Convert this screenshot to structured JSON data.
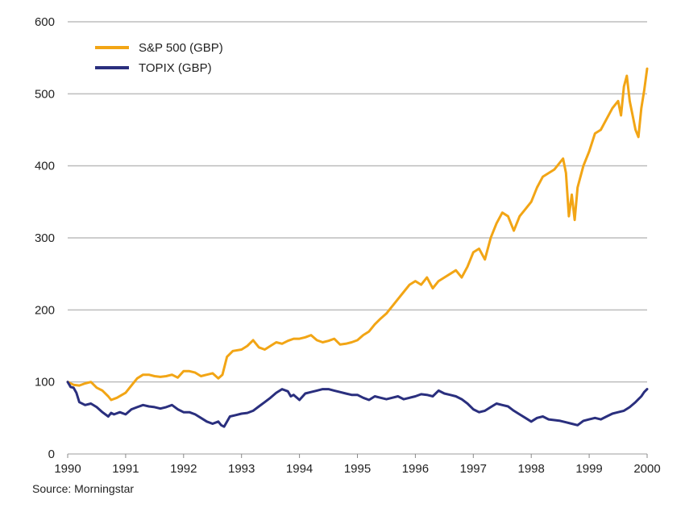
{
  "chart_data": {
    "type": "line",
    "title": "",
    "xlabel": "",
    "ylabel": "",
    "xlim": [
      1990,
      2000
    ],
    "ylim": [
      0,
      600
    ],
    "x_ticks": [
      1990,
      1991,
      1992,
      1993,
      1994,
      1995,
      1996,
      1997,
      1998,
      1999,
      2000
    ],
    "x_tick_labels": [
      "1990",
      "1991",
      "1992",
      "1993",
      "1994",
      "1995",
      "1996",
      "1997",
      "1998",
      "1999",
      "2000"
    ],
    "y_ticks": [
      0,
      100,
      200,
      300,
      400,
      500,
      600
    ],
    "y_tick_labels": [
      "0",
      "100",
      "200",
      "300",
      "400",
      "500",
      "600"
    ],
    "grid": "horizontal",
    "legend_position": "top-left",
    "series": [
      {
        "name": "S&P 500 (GBP)",
        "color": "#F2A515",
        "x": [
          1990.0,
          1990.1,
          1990.2,
          1990.3,
          1990.4,
          1990.5,
          1990.6,
          1990.7,
          1990.75,
          1990.85,
          1991.0,
          1991.1,
          1991.2,
          1991.3,
          1991.4,
          1991.5,
          1991.6,
          1991.7,
          1991.8,
          1991.9,
          1992.0,
          1992.1,
          1992.2,
          1992.3,
          1992.4,
          1992.5,
          1992.6,
          1992.67,
          1992.75,
          1992.85,
          1993.0,
          1993.1,
          1993.2,
          1993.3,
          1993.4,
          1993.5,
          1993.6,
          1993.7,
          1993.8,
          1993.9,
          1994.0,
          1994.1,
          1994.2,
          1994.3,
          1994.4,
          1994.5,
          1994.6,
          1994.7,
          1994.8,
          1994.9,
          1995.0,
          1995.1,
          1995.2,
          1995.3,
          1995.4,
          1995.5,
          1995.6,
          1995.7,
          1995.8,
          1995.9,
          1996.0,
          1996.1,
          1996.2,
          1996.3,
          1996.4,
          1996.5,
          1996.6,
          1996.7,
          1996.8,
          1996.9,
          1997.0,
          1997.1,
          1997.2,
          1997.3,
          1997.4,
          1997.5,
          1997.6,
          1997.7,
          1997.8,
          1997.9,
          1998.0,
          1998.1,
          1998.2,
          1998.3,
          1998.4,
          1998.5,
          1998.55,
          1998.6,
          1998.65,
          1998.7,
          1998.75,
          1998.8,
          1998.9,
          1999.0,
          1999.1,
          1999.2,
          1999.3,
          1999.4,
          1999.5,
          1999.55,
          1999.6,
          1999.65,
          1999.7,
          1999.75,
          1999.8,
          1999.85,
          1999.9,
          1999.95,
          2000.0
        ],
        "y": [
          100,
          96,
          95,
          98,
          100,
          92,
          88,
          80,
          75,
          78,
          85,
          95,
          105,
          110,
          110,
          108,
          107,
          108,
          110,
          106,
          115,
          115,
          113,
          108,
          110,
          112,
          105,
          110,
          135,
          143,
          145,
          150,
          158,
          148,
          145,
          150,
          155,
          153,
          157,
          160,
          160,
          162,
          165,
          158,
          155,
          157,
          160,
          152,
          153,
          155,
          158,
          165,
          170,
          180,
          188,
          195,
          205,
          215,
          225,
          235,
          240,
          235,
          245,
          230,
          240,
          245,
          250,
          255,
          245,
          260,
          280,
          285,
          270,
          300,
          320,
          335,
          330,
          310,
          330,
          340,
          350,
          370,
          385,
          390,
          395,
          405,
          410,
          390,
          330,
          360,
          325,
          370,
          400,
          420,
          445,
          450,
          465,
          480,
          490,
          470,
          510,
          525,
          490,
          470,
          450,
          440,
          480,
          505,
          535
        ]
      },
      {
        "name": "TOPIX (GBP)",
        "color": "#2A2F7E",
        "x": [
          1990.0,
          1990.05,
          1990.1,
          1990.15,
          1990.2,
          1990.3,
          1990.4,
          1990.5,
          1990.6,
          1990.7,
          1990.75,
          1990.8,
          1990.9,
          1991.0,
          1991.1,
          1991.2,
          1991.3,
          1991.4,
          1991.5,
          1991.6,
          1991.7,
          1991.8,
          1991.9,
          1992.0,
          1992.1,
          1992.2,
          1992.3,
          1992.4,
          1992.5,
          1992.6,
          1992.65,
          1992.7,
          1992.8,
          1992.9,
          1993.0,
          1993.1,
          1993.2,
          1993.3,
          1993.4,
          1993.5,
          1993.6,
          1993.7,
          1993.8,
          1993.85,
          1993.9,
          1994.0,
          1994.1,
          1994.2,
          1994.3,
          1994.4,
          1994.5,
          1994.6,
          1994.7,
          1994.8,
          1994.9,
          1995.0,
          1995.1,
          1995.2,
          1995.3,
          1995.4,
          1995.5,
          1995.6,
          1995.7,
          1995.8,
          1995.9,
          1996.0,
          1996.1,
          1996.2,
          1996.3,
          1996.4,
          1996.5,
          1996.6,
          1996.7,
          1996.8,
          1996.9,
          1997.0,
          1997.1,
          1997.2,
          1997.3,
          1997.4,
          1997.5,
          1997.6,
          1997.7,
          1997.8,
          1997.9,
          1998.0,
          1998.1,
          1998.2,
          1998.3,
          1998.4,
          1998.5,
          1998.6,
          1998.7,
          1998.8,
          1998.9,
          1999.0,
          1999.1,
          1999.2,
          1999.3,
          1999.4,
          1999.5,
          1999.6,
          1999.7,
          1999.8,
          1999.85,
          1999.9,
          1999.95,
          2000.0
        ],
        "y": [
          100,
          93,
          92,
          85,
          72,
          68,
          70,
          65,
          58,
          52,
          57,
          55,
          58,
          55,
          62,
          65,
          68,
          66,
          65,
          63,
          65,
          68,
          62,
          58,
          58,
          55,
          50,
          45,
          42,
          45,
          40,
          38,
          52,
          54,
          56,
          57,
          60,
          66,
          72,
          78,
          85,
          90,
          87,
          80,
          82,
          75,
          84,
          86,
          88,
          90,
          90,
          88,
          86,
          84,
          82,
          82,
          78,
          75,
          80,
          78,
          76,
          78,
          80,
          76,
          78,
          80,
          83,
          82,
          80,
          88,
          84,
          82,
          80,
          76,
          70,
          62,
          58,
          60,
          65,
          70,
          68,
          66,
          60,
          55,
          50,
          45,
          50,
          52,
          48,
          47,
          46,
          44,
          42,
          40,
          46,
          48,
          50,
          48,
          52,
          56,
          58,
          60,
          65,
          72,
          76,
          80,
          86,
          90
        ]
      }
    ],
    "source_note": "Source: Morningstar"
  }
}
